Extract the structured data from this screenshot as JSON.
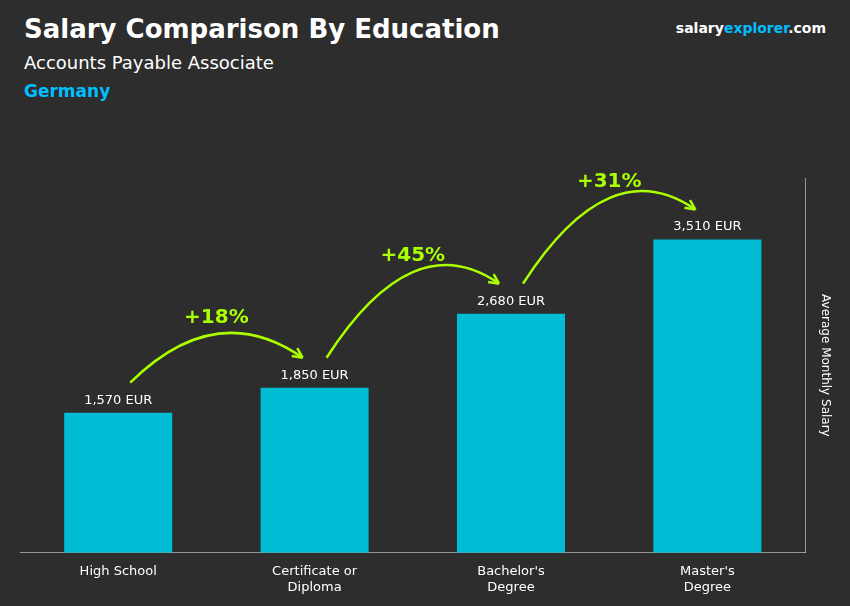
{
  "chart_data": {
    "type": "bar",
    "title": "Salary Comparison By Education",
    "subtitle": "Accounts Payable Associate",
    "ylabel": "Average Monthly Salary",
    "categories": [
      "High School",
      "Certificate or\nDiploma",
      "Bachelor's\nDegree",
      "Master's\nDegree"
    ],
    "values": [
      1570,
      1850,
      2680,
      3510
    ],
    "value_labels": [
      "1,570 EUR",
      "1,850 EUR",
      "2,680 EUR",
      "3,510 EUR"
    ],
    "data_labels": true,
    "color": "#00bcd4",
    "ylim": [
      0,
      4200
    ],
    "tick_labels": "x",
    "grid": false,
    "annotations": {
      "country": {
        "text": "Germany",
        "color": "#00bfff"
      },
      "logo": [
        {
          "text": "salary",
          "color": "#ffffff"
        },
        {
          "text": "explorer",
          "color": "#00bfff"
        },
        {
          "text": ".com",
          "color": "#ffffff"
        }
      ],
      "arrows": [
        {
          "text": "+18%",
          "from": "High School",
          "to": "Certificate or\nDiploma",
          "color": "#aaff00"
        },
        {
          "text": "+45%",
          "from": "Certificate or\nDiploma",
          "to": "Bachelor's\nDegree",
          "color": "#aaff00"
        },
        {
          "text": "+31%",
          "from": "Bachelor's\nDegree",
          "to": "Master's\nDegree",
          "color": "#aaff00"
        }
      ]
    }
  }
}
